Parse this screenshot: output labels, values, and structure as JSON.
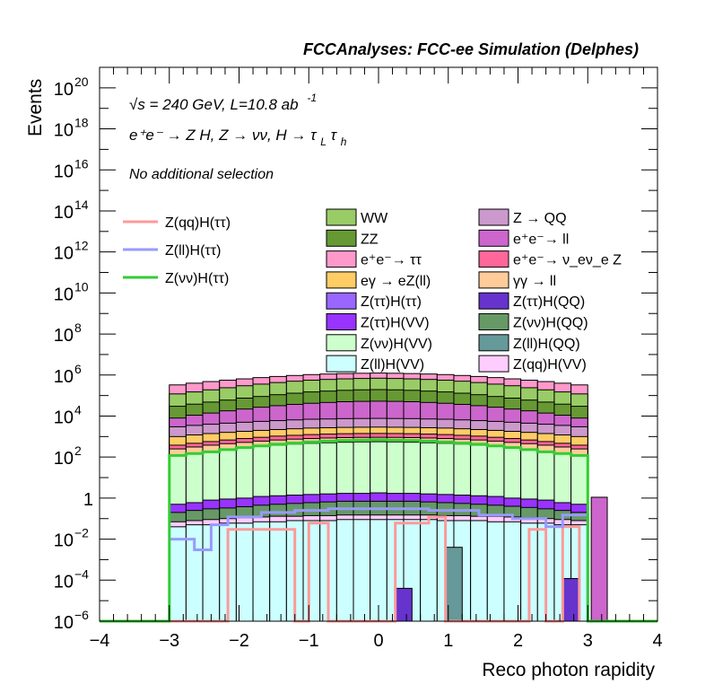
{
  "chart_data": {
    "type": "histogram",
    "title": "FCCAnalyses: FCC-ee Simulation (Delphes)",
    "xlabel": "Reco photon rapidity",
    "ylabel": "Events",
    "xlim": [
      -4,
      4
    ],
    "ylim": [
      1e-06,
      1e+21
    ],
    "yscale": "log",
    "x_ticks": [
      -4,
      -3,
      -2,
      -1,
      0,
      1,
      2,
      3,
      4
    ],
    "y_tick_labels": [
      {
        "v": 1e-06,
        "base": "10",
        "exp": "−6"
      },
      {
        "v": 0.0001,
        "base": "10",
        "exp": "−4"
      },
      {
        "v": 0.01,
        "base": "10",
        "exp": "−2"
      },
      {
        "v": 1,
        "base": "1",
        "exp": ""
      },
      {
        "v": 100.0,
        "base": "10",
        "exp": "2"
      },
      {
        "v": 10000.0,
        "base": "10",
        "exp": "4"
      },
      {
        "v": 1000000.0,
        "base": "10",
        "exp": "6"
      },
      {
        "v": 100000000.0,
        "base": "10",
        "exp": "8"
      },
      {
        "v": 10000000000.0,
        "base": "10",
        "exp": "10"
      },
      {
        "v": 1000000000000.0,
        "base": "10",
        "exp": "12"
      },
      {
        "v": 100000000000000.0,
        "base": "10",
        "exp": "14"
      },
      {
        "v": 1e+16,
        "base": "10",
        "exp": "16"
      },
      {
        "v": 1e+18,
        "base": "10",
        "exp": "18"
      },
      {
        "v": 1e+20,
        "base": "10",
        "exp": "20"
      }
    ],
    "annotations": {
      "line1": "√s = 240 GeV, L=10.8 ab",
      "line1_sup": "-1",
      "line2": "e⁺e⁻ → Z H, Z → νν, H → τ",
      "line2_sub1": "L",
      "line2_tau": "τ",
      "line2_sub2": "h",
      "line3": "No additional selection"
    },
    "bin_edges_range": [
      -3,
      3
    ],
    "stack_layers": [
      {
        "name": "Z(ll)H(VV)",
        "color": "#ccffff",
        "level": [
          0.04,
          0.05,
          0.05,
          0.06,
          0.06,
          0.07,
          0.07,
          0.08,
          0.08,
          0.08,
          0.09,
          0.09,
          0.09,
          0.09,
          0.09,
          0.09,
          0.08,
          0.08,
          0.08,
          0.07,
          0.07,
          0.06,
          0.06,
          0.05,
          0.05
        ]
      },
      {
        "name": "Z(qq)H(VV)",
        "color": "#ffccff",
        "level": [
          0.07,
          0.08,
          0.09,
          0.1,
          0.11,
          0.12,
          0.13,
          0.13,
          0.14,
          0.14,
          0.15,
          0.15,
          0.15,
          0.15,
          0.15,
          0.15,
          0.14,
          0.14,
          0.13,
          0.13,
          0.12,
          0.11,
          0.1,
          0.09,
          0.08
        ]
      },
      {
        "name": "Z(νν)H(QQ)",
        "color": "#669966",
        "level": [
          0.2,
          0.25,
          0.3,
          0.33,
          0.38,
          0.45,
          0.5,
          0.55,
          0.6,
          0.65,
          0.7,
          0.7,
          0.7,
          0.7,
          0.7,
          0.65,
          0.6,
          0.55,
          0.5,
          0.45,
          0.4,
          0.35,
          0.3,
          0.25,
          0.2
        ]
      },
      {
        "name": "Z(ττ)H(VV)",
        "color": "#9933ff",
        "level": [
          0.5,
          0.6,
          0.8,
          0.9,
          1.0,
          1.2,
          1.3,
          1.4,
          1.5,
          1.6,
          1.7,
          1.7,
          1.8,
          1.7,
          1.7,
          1.6,
          1.5,
          1.4,
          1.3,
          1.2,
          1.0,
          0.9,
          0.8,
          0.6,
          0.5
        ]
      },
      {
        "name": "Z(νν)H(VV)",
        "color": "#ccffcc",
        "level": [
          120,
          150,
          190,
          230,
          280,
          330,
          380,
          430,
          470,
          500,
          530,
          550,
          560,
          550,
          530,
          500,
          470,
          430,
          380,
          330,
          280,
          230,
          190,
          150,
          120
        ]
      },
      {
        "name": "γγ → ll",
        "color": "#ffcc99",
        "level": [
          250,
          310,
          380,
          450,
          520,
          600,
          680,
          750,
          800,
          850,
          890,
          910,
          920,
          910,
          890,
          850,
          800,
          750,
          680,
          600,
          520,
          450,
          380,
          310,
          250
        ]
      },
      {
        "name": "e⁺e⁻→ ν_eν_e Z",
        "color": "#ff6699",
        "level": [
          380,
          470,
          570,
          680,
          800,
          920,
          1050,
          1150,
          1250,
          1320,
          1380,
          1410,
          1420,
          1410,
          1380,
          1320,
          1250,
          1150,
          1050,
          920,
          800,
          680,
          570,
          470,
          380
        ]
      },
      {
        "name": "eγ → eZ(ll)",
        "color": "#ffcc66",
        "level": [
          1000,
          1200,
          1400,
          1600,
          1800,
          2000,
          2200,
          2400,
          2600,
          2700,
          2800,
          2850,
          2900,
          2850,
          2800,
          2700,
          2600,
          2400,
          2200,
          2000,
          1800,
          1600,
          1400,
          1200,
          1000
        ]
      },
      {
        "name": "Z → QQ",
        "color": "#cc99cc",
        "level": [
          3000,
          3500,
          4000,
          4500,
          5000,
          5500,
          6000,
          6500,
          7000,
          7200,
          7500,
          7600,
          7700,
          7600,
          7500,
          7200,
          7000,
          6500,
          6000,
          5500,
          5000,
          4500,
          4000,
          3500,
          3000
        ]
      },
      {
        "name": "e⁺e⁻→ ll",
        "color": "#cc66cc",
        "level": [
          8000,
          11000,
          14000,
          18000,
          22000,
          27000,
          32000,
          37000,
          42000,
          46000,
          50000,
          52000,
          53000,
          52000,
          50000,
          46000,
          42000,
          37000,
          32000,
          27000,
          22000,
          18000,
          14000,
          11000,
          8000
        ]
      },
      {
        "name": "ZZ",
        "color": "#669933",
        "level": [
          30000,
          38000,
          48000,
          60000,
          75000,
          90000,
          110000,
          130000,
          150000,
          165000,
          180000,
          190000,
          195000,
          190000,
          180000,
          165000,
          150000,
          130000,
          110000,
          90000,
          75000,
          60000,
          48000,
          38000,
          30000
        ]
      },
      {
        "name": "WW",
        "color": "#99cc66",
        "level": [
          120000,
          150000,
          190000,
          240000,
          300000,
          360000,
          430000,
          500000,
          560000,
          610000,
          650000,
          680000,
          700000,
          680000,
          650000,
          610000,
          560000,
          500000,
          430000,
          360000,
          300000,
          240000,
          190000,
          150000,
          120000
        ]
      },
      {
        "name": "e⁺e⁻→ ττ",
        "color": "#ff99cc",
        "level": [
          330000,
          400000,
          480000,
          560000,
          650000,
          750000,
          850000,
          950000,
          1050000,
          1120000,
          1180000,
          1220000,
          1250000,
          1220000,
          1180000,
          1120000,
          1050000,
          950000,
          850000,
          750000,
          650000,
          560000,
          480000,
          400000,
          330000
        ]
      }
    ],
    "sparse_bars": [
      {
        "name": "Z(ττ)H(QQ)",
        "color": "#6633cc",
        "bars": [
          {
            "x0": 0.24,
            "x1": 0.48,
            "y": 4e-05
          },
          {
            "x0": 2.64,
            "x1": 2.88,
            "y": 0.00012
          }
        ]
      },
      {
        "name": "Z(ll)H(QQ)",
        "color": "#669999",
        "bars": [
          {
            "x0": 0.96,
            "x1": 1.2,
            "y": 0.004
          }
        ]
      },
      {
        "name": "e⁺e⁻→ ll",
        "color": "#cc66cc",
        "bars": [
          {
            "x0": 3.05,
            "x1": 3.28,
            "y": 1.1
          }
        ]
      }
    ],
    "lines": [
      {
        "name": "Z(qq)H(ττ)",
        "color": "#ff9999",
        "step": [
          [
            -3.0,
            1e-06
          ],
          [
            -2.16,
            1e-06
          ],
          [
            -2.16,
            0.03
          ],
          [
            -1.2,
            0.03
          ],
          [
            -1.2,
            1e-06
          ],
          [
            -1.0,
            1e-06
          ],
          [
            -1.0,
            0.06
          ],
          [
            -0.72,
            0.06
          ],
          [
            -0.72,
            1e-06
          ],
          [
            0.24,
            1e-06
          ],
          [
            0.24,
            0.06
          ],
          [
            0.72,
            0.06
          ],
          [
            0.72,
            0.12
          ],
          [
            0.96,
            0.12
          ],
          [
            0.96,
            1e-06
          ],
          [
            2.16,
            1e-06
          ],
          [
            2.16,
            0.03
          ],
          [
            2.4,
            0.03
          ],
          [
            2.4,
            1e-06
          ],
          [
            2.64,
            1e-06
          ],
          [
            2.64,
            0.04
          ],
          [
            2.88,
            0.04
          ],
          [
            2.88,
            1e-06
          ]
        ]
      },
      {
        "name": "Z(ll)H(ττ)",
        "color": "#9999ff",
        "step": [
          [
            -3.0,
            0.01
          ],
          [
            -2.64,
            0.01
          ],
          [
            -2.64,
            0.003
          ],
          [
            -2.4,
            0.003
          ],
          [
            -2.4,
            0.05
          ],
          [
            -2.16,
            0.05
          ],
          [
            -2.16,
            0.12
          ],
          [
            -1.68,
            0.12
          ],
          [
            -1.68,
            0.2
          ],
          [
            -1.2,
            0.2
          ],
          [
            -1.2,
            0.25
          ],
          [
            -0.72,
            0.25
          ],
          [
            -0.72,
            0.3
          ],
          [
            0.72,
            0.3
          ],
          [
            0.72,
            0.25
          ],
          [
            1.44,
            0.25
          ],
          [
            1.44,
            0.15
          ],
          [
            1.92,
            0.15
          ],
          [
            1.92,
            0.1
          ],
          [
            2.4,
            0.1
          ],
          [
            2.4,
            0.04
          ],
          [
            2.64,
            0.04
          ],
          [
            2.64,
            0.15
          ],
          [
            3.0,
            0.15
          ],
          [
            3.0,
            1e-06
          ]
        ]
      },
      {
        "name": "Z(νν)H(ττ)",
        "color": "#33cc33",
        "step": [
          [
            -4,
            1e-06
          ],
          [
            -3.0,
            1e-06
          ],
          [
            -3.0,
            120
          ],
          [
            -2.76,
            120
          ],
          [
            -2.76,
            150
          ],
          [
            -2.52,
            150
          ],
          [
            -2.52,
            180
          ],
          [
            -2.28,
            180
          ],
          [
            -2.28,
            230
          ],
          [
            -2.04,
            230
          ],
          [
            -2.04,
            290
          ],
          [
            -1.8,
            290
          ],
          [
            -1.8,
            350
          ],
          [
            -1.56,
            350
          ],
          [
            -1.56,
            420
          ],
          [
            -1.32,
            420
          ],
          [
            -1.32,
            480
          ],
          [
            -1.08,
            480
          ],
          [
            -1.08,
            540
          ],
          [
            -0.84,
            540
          ],
          [
            -0.84,
            600
          ],
          [
            -0.6,
            600
          ],
          [
            -0.6,
            650
          ],
          [
            -0.36,
            650
          ],
          [
            -0.36,
            680
          ],
          [
            -0.12,
            680
          ],
          [
            -0.12,
            700
          ],
          [
            0.12,
            700
          ],
          [
            0.12,
            680
          ],
          [
            0.36,
            680
          ],
          [
            0.36,
            650
          ],
          [
            0.6,
            650
          ],
          [
            0.6,
            600
          ],
          [
            0.84,
            600
          ],
          [
            0.84,
            540
          ],
          [
            1.08,
            540
          ],
          [
            1.08,
            480
          ],
          [
            1.32,
            480
          ],
          [
            1.32,
            420
          ],
          [
            1.56,
            420
          ],
          [
            1.56,
            350
          ],
          [
            1.8,
            350
          ],
          [
            1.8,
            290
          ],
          [
            2.04,
            290
          ],
          [
            2.04,
            230
          ],
          [
            2.28,
            230
          ],
          [
            2.28,
            180
          ],
          [
            2.52,
            180
          ],
          [
            2.52,
            150
          ],
          [
            2.76,
            150
          ],
          [
            2.76,
            120
          ],
          [
            3.0,
            120
          ],
          [
            3.0,
            1e-06
          ],
          [
            4,
            1e-06
          ]
        ]
      }
    ],
    "legend_lines": [
      "Z(qq)H(ττ)",
      "Z(ll)H(ττ)",
      "Z(νν)H(ττ)"
    ],
    "legend_fills": [
      {
        "label": "WW",
        "color": "#99cc66"
      },
      {
        "label": "Z → QQ",
        "color": "#cc99cc"
      },
      {
        "label": "ZZ",
        "color": "#669933"
      },
      {
        "label": "e⁺e⁻→ ll",
        "color": "#cc66cc"
      },
      {
        "label": "e⁺e⁻→ ττ",
        "color": "#ff99cc"
      },
      {
        "label": "e⁺e⁻→ ν_eν_e Z",
        "color": "#ff6699"
      },
      {
        "label": "eγ → eZ(ll)",
        "color": "#ffcc66"
      },
      {
        "label": "γγ → ll",
        "color": "#ffcc99"
      },
      {
        "label": "Z(ττ)H(ττ)",
        "color": "#9966ff"
      },
      {
        "label": "Z(ττ)H(QQ)",
        "color": "#6633cc"
      },
      {
        "label": "Z(ττ)H(VV)",
        "color": "#9933ff"
      },
      {
        "label": "Z(νν)H(QQ)",
        "color": "#669966"
      },
      {
        "label": "Z(νν)H(VV)",
        "color": "#ccffcc"
      },
      {
        "label": "Z(ll)H(QQ)",
        "color": "#669999"
      },
      {
        "label": "Z(ll)H(VV)",
        "color": "#ccffff"
      },
      {
        "label": "Z(qq)H(VV)",
        "color": "#ffccff"
      }
    ]
  }
}
